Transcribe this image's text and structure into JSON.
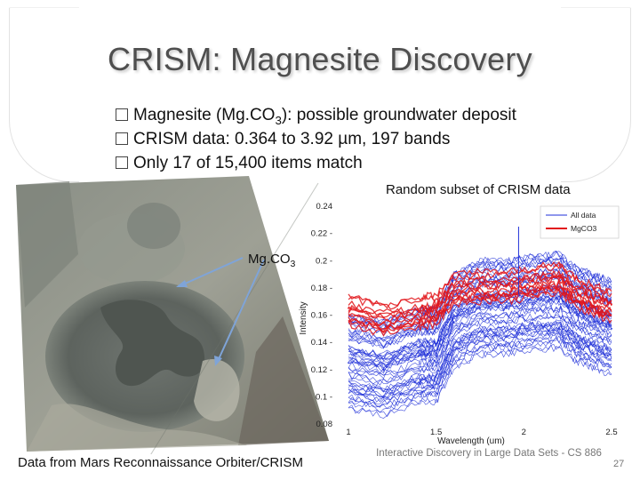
{
  "slide": {
    "title": "CRISM: Magnesite Discovery",
    "bullets": [
      {
        "pre": "Magnesite (Mg.CO",
        "sub": "3",
        "post": "): possible groundwater deposit"
      },
      {
        "text": "CRISM data: 0.364 to 3.92 µm, 197 bands"
      },
      {
        "text": "Only 17 of 15,400 items match"
      }
    ],
    "image_label": {
      "pre": "Mg.CO",
      "sub": "3"
    },
    "chart_title": "Random subset of CRISM data",
    "caption": "Data from Mars Reconnaissance Orbiter/CRISM",
    "footer": "Interactive Discovery in Large Data Sets - CS 886",
    "page_number": "27"
  },
  "colors": {
    "all_data": "#1f2fd8",
    "mgco3": "#e2161b"
  },
  "chart_data": {
    "type": "line",
    "title": "",
    "xlabel": "Wavelength (um)",
    "ylabel": "Intensity",
    "xlim": [
      1.0,
      2.5
    ],
    "ylim": [
      0.08,
      0.24
    ],
    "yticks": [
      "0.24",
      "0.22",
      "0.2",
      "0.18",
      "0.16",
      "0.14",
      "0.12",
      "0.1",
      "0.08"
    ],
    "xticks": [
      "1",
      "1.5",
      "2",
      "2.5"
    ],
    "legend": {
      "placement": "top-right",
      "entries": [
        "All data",
        "MgCO3"
      ]
    },
    "series": [
      {
        "name": "All data",
        "x": [
          1.0,
          1.2,
          1.4,
          1.5,
          1.6,
          1.75,
          1.9,
          2.05,
          2.2,
          2.3,
          2.4,
          2.5
        ],
        "values": [
          0.125,
          0.12,
          0.13,
          0.13,
          0.155,
          0.165,
          0.165,
          0.168,
          0.17,
          0.16,
          0.155,
          0.15
        ]
      },
      {
        "name": "MgCO3",
        "x": [
          1.0,
          1.2,
          1.4,
          1.5,
          1.6,
          1.75,
          1.9,
          2.05,
          2.2,
          2.3,
          2.4,
          2.5
        ],
        "values": [
          0.165,
          0.158,
          0.163,
          0.165,
          0.18,
          0.182,
          0.182,
          0.185,
          0.188,
          0.178,
          0.172,
          0.168
        ]
      }
    ]
  }
}
